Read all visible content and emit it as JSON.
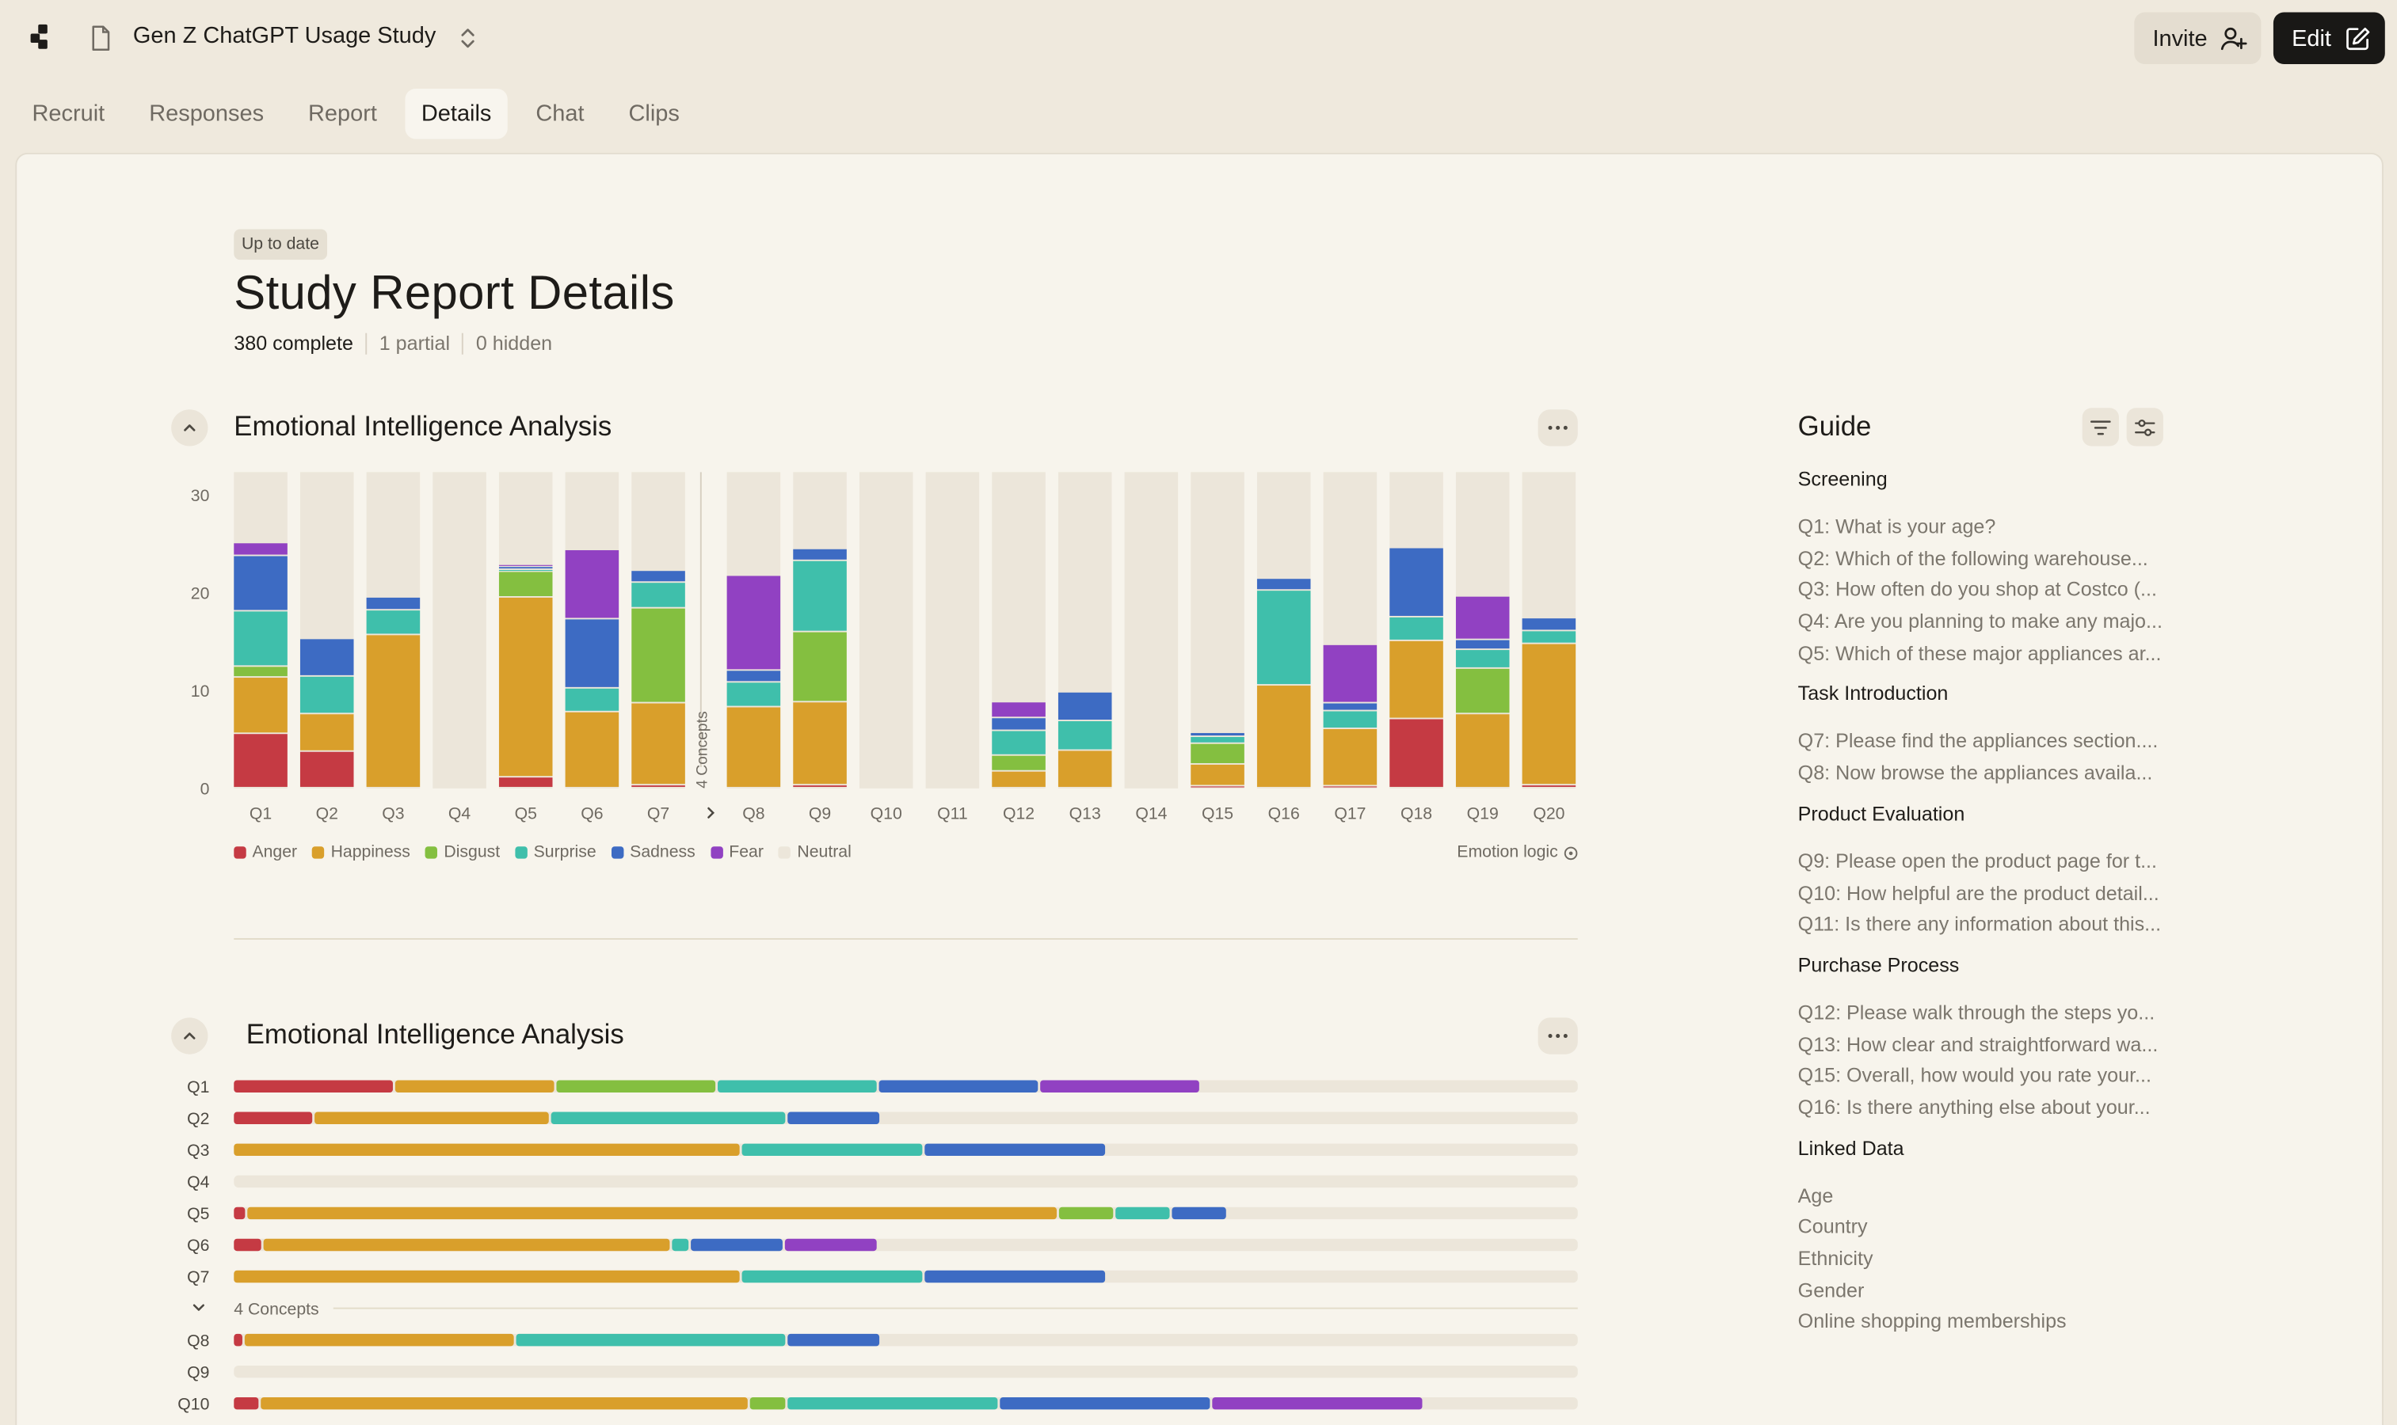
{
  "app": {
    "study_title": "Gen Z ChatGPT Usage Study",
    "invite_label": "Invite",
    "edit_label": "Edit"
  },
  "tabs": [
    {
      "label": "Recruit",
      "active": false
    },
    {
      "label": "Responses",
      "active": false
    },
    {
      "label": "Report",
      "active": false
    },
    {
      "label": "Details",
      "active": true
    },
    {
      "label": "Chat",
      "active": false
    },
    {
      "label": "Clips",
      "active": false
    }
  ],
  "report": {
    "status_badge": "Up to date",
    "title": "Study Report Details",
    "complete": "380 complete",
    "partial": "1 partial",
    "hidden": "0 hidden"
  },
  "section1": {
    "title": "Emotional Intelligence Analysis",
    "emotion_logic": "Emotion logic"
  },
  "section2": {
    "title": "Emotional Intelligence Analysis",
    "concepts_label": "4 Concepts"
  },
  "colors": {
    "Anger": "#c53a43",
    "Happiness": "#d99f2b",
    "Disgust": "#84bf40",
    "Surprise": "#3fbfab",
    "Sadness": "#3d6bc3",
    "Fear": "#9141c2",
    "Neutral": "#ece6da"
  },
  "legend": [
    "Anger",
    "Happiness",
    "Disgust",
    "Surprise",
    "Sadness",
    "Fear",
    "Neutral"
  ],
  "chart_data": [
    {
      "type": "bar",
      "stacked": true,
      "orientation": "vertical",
      "title": "Emotional Intelligence Analysis",
      "yticks": [
        0,
        10,
        20,
        30
      ],
      "ylim": [
        0,
        32
      ],
      "group_marker": {
        "label": "4 Concepts",
        "after": "Q7"
      },
      "categories": [
        "Q1",
        "Q2",
        "Q3",
        "Q4",
        "Q5",
        "Q6",
        "Q7",
        "Q8",
        "Q9",
        "Q10",
        "Q11",
        "Q12",
        "Q13",
        "Q14",
        "Q15",
        "Q16",
        "Q17",
        "Q18",
        "Q19",
        "Q20"
      ],
      "series": [
        {
          "name": "Anger",
          "values": [
            5.5,
            3.7,
            0,
            0,
            1.1,
            0,
            0.3,
            0,
            0.3,
            0,
            0,
            0,
            0,
            0,
            0.2,
            0,
            0.2,
            7.0,
            0,
            0.3
          ]
        },
        {
          "name": "Happiness",
          "values": [
            5.7,
            3.8,
            15.5,
            0,
            18.2,
            7.7,
            8.3,
            8.2,
            8.4,
            0,
            0,
            1.7,
            3.8,
            0,
            2.2,
            10.4,
            5.8,
            7.9,
            7.5,
            14.3
          ]
        },
        {
          "name": "Disgust",
          "values": [
            1.1,
            0,
            0,
            0,
            2.6,
            0,
            9.6,
            0,
            7.1,
            0,
            0,
            1.6,
            0,
            0,
            2.1,
            0,
            0,
            0,
            4.6,
            0
          ]
        },
        {
          "name": "Surprise",
          "values": [
            5.6,
            3.8,
            2.5,
            0,
            0.2,
            2.4,
            2.6,
            2.5,
            7.2,
            0,
            0,
            2.5,
            3.0,
            0,
            0.7,
            9.6,
            1.8,
            2.4,
            1.9,
            1.3
          ]
        },
        {
          "name": "Sadness",
          "values": [
            5.6,
            3.8,
            1.3,
            0,
            0.3,
            7.0,
            1.2,
            1.2,
            1.2,
            0,
            0,
            1.3,
            2.9,
            0,
            0.4,
            1.2,
            0.8,
            7.0,
            1.0,
            1.3
          ]
        },
        {
          "name": "Fear",
          "values": [
            1.3,
            0,
            0,
            0,
            0.2,
            7.0,
            0,
            9.6,
            0,
            0,
            0,
            1.6,
            0,
            0,
            0,
            0,
            5.9,
            0,
            4.4,
            0
          ]
        }
      ]
    },
    {
      "type": "bar",
      "stacked": true,
      "orientation": "horizontal",
      "title": "Emotional Intelligence Analysis",
      "xlim": [
        0,
        50
      ],
      "group_marker": {
        "label": "4 Concepts",
        "after": "Q7"
      },
      "categories": [
        "Q1",
        "Q2",
        "Q3",
        "Q4",
        "Q5",
        "Q6",
        "Q7",
        "Q8",
        "Q9",
        "Q10"
      ],
      "series": [
        {
          "name": "Anger",
          "values": [
            6,
            3,
            0,
            0,
            0.5,
            1.1,
            0,
            0.4,
            0,
            1
          ]
        },
        {
          "name": "Happiness",
          "values": [
            6,
            8.8,
            18.9,
            0,
            30.2,
            15.2,
            18.9,
            10.1,
            0,
            18.2
          ]
        },
        {
          "name": "Disgust",
          "values": [
            6,
            0,
            0,
            0,
            2.1,
            0,
            0,
            0,
            0,
            1.4
          ]
        },
        {
          "name": "Surprise",
          "values": [
            6,
            8.8,
            6.8,
            0,
            2.1,
            0.7,
            6.8,
            10.1,
            0,
            7.9
          ]
        },
        {
          "name": "Sadness",
          "values": [
            6,
            3.5,
            6.8,
            0,
            2.1,
            3.5,
            6.8,
            3.5,
            0,
            7.9
          ]
        },
        {
          "name": "Fear",
          "values": [
            6,
            0,
            0,
            0,
            0,
            3.5,
            0,
            0,
            0,
            7.9
          ]
        }
      ]
    }
  ],
  "guide": {
    "title": "Guide",
    "sections": [
      {
        "title": "Screening",
        "items": [
          "Q1: What is your age?",
          "Q2: Which of the following warehouse...",
          "Q3: How often do you shop at Costco (...",
          "Q4: Are you planning to make any majo...",
          "Q5: Which of these major appliances ar..."
        ]
      },
      {
        "title": "Task Introduction",
        "items": [
          "Q7: Please find the appliances section....",
          "Q8: Now browse the appliances availa..."
        ]
      },
      {
        "title": "Product Evaluation",
        "items": [
          "Q9: Please open the product page for t...",
          "Q10: How helpful are the product detail...",
          "Q11: Is there any information about this..."
        ]
      },
      {
        "title": "Purchase Process",
        "items": [
          "Q12: Please walk through the steps yo...",
          "Q13: How clear and straightforward wa...",
          "Q15: Overall, how would you rate your...",
          "Q16: Is there anything else about your..."
        ]
      },
      {
        "title": "Linked Data",
        "items": [
          "Age",
          "Country",
          "Ethnicity",
          "Gender",
          "Online shopping memberships"
        ]
      }
    ]
  }
}
